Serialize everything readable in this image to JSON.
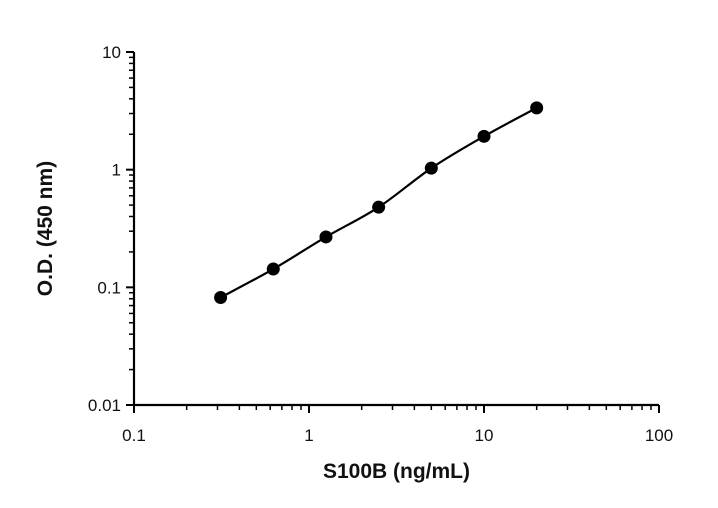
{
  "chart_data": {
    "type": "scatter",
    "xlabel": "S100B (ng/mL)",
    "ylabel": "O.D. (450 nm)",
    "xscale": "log",
    "yscale": "log",
    "xlim": [
      0.1,
      100
    ],
    "ylim": [
      0.01,
      10
    ],
    "x_ticks": [
      "0.1",
      "1",
      "10",
      "100"
    ],
    "y_ticks": [
      "0.01",
      "0.1",
      "1",
      "10"
    ],
    "grid": false,
    "legend": "none",
    "fit_line": true,
    "series": [
      {
        "x": [
          0.3125,
          0.625,
          1.25,
          2.5,
          5,
          10,
          20
        ],
        "y": [
          0.082,
          0.143,
          0.268,
          0.48,
          1.03,
          1.92,
          3.35
        ]
      }
    ]
  }
}
